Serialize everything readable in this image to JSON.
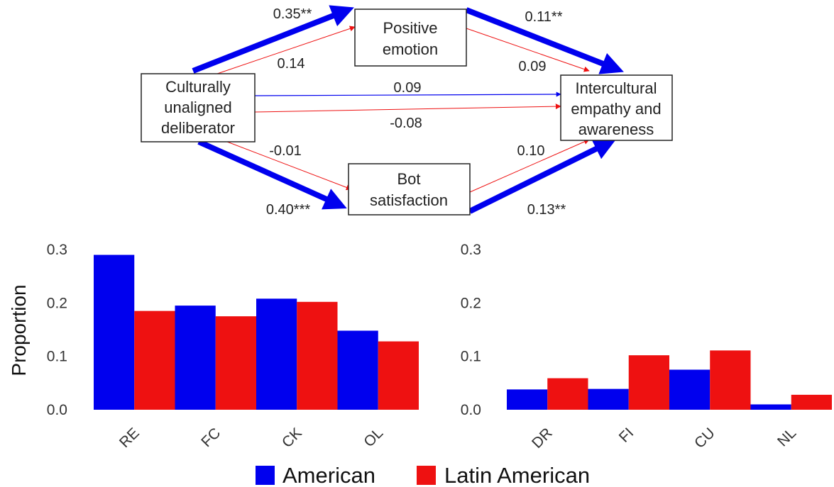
{
  "diagram": {
    "nodes": {
      "positive_emotion": [
        "Positive",
        "emotion"
      ],
      "culturally_unaligned": [
        "Culturally",
        "unaligned",
        "deliberator"
      ],
      "intercultural": [
        "Intercultural",
        "empathy and",
        "awareness"
      ],
      "bot_satisfaction": [
        "Bot",
        "satisfaction"
      ]
    },
    "paths": {
      "american": {
        "cu_to_pe": "0.35**",
        "pe_to_ic": "0.11**",
        "cu_to_ic": "0.09",
        "cu_to_bs": "0.40***",
        "bs_to_ic": "0.13**"
      },
      "latin_american": {
        "cu_to_pe": "0.14",
        "pe_to_ic": "0.09",
        "cu_to_ic": "-0.08",
        "cu_to_bs": "-0.01",
        "bs_to_ic": "0.10"
      }
    },
    "colors": {
      "american": "#0000ee",
      "latin_american": "#ee1111"
    }
  },
  "chart_data": [
    {
      "type": "bar",
      "categories": [
        "RE",
        "FC",
        "CK",
        "OL"
      ],
      "series": [
        {
          "name": "American",
          "values": [
            0.29,
            0.195,
            0.208,
            0.148
          ]
        },
        {
          "name": "Latin American",
          "values": [
            0.185,
            0.175,
            0.202,
            0.128
          ]
        }
      ],
      "ylabel": "Proportion",
      "ylim": [
        0,
        0.3
      ],
      "yticks": [
        "0.0",
        "0.1",
        "0.2",
        "0.3"
      ],
      "grid": false
    },
    {
      "type": "bar",
      "categories": [
        "DR",
        "FI",
        "CU",
        "NL"
      ],
      "series": [
        {
          "name": "American",
          "values": [
            0.038,
            0.039,
            0.075,
            0.01
          ]
        },
        {
          "name": "Latin American",
          "values": [
            0.059,
            0.102,
            0.111,
            0.028
          ]
        }
      ],
      "ylim": [
        0,
        0.3
      ],
      "yticks": [
        "0.0",
        "0.1",
        "0.2",
        "0.3"
      ],
      "grid": false
    }
  ],
  "legend": {
    "position": "bottom-center",
    "items": [
      {
        "label": "American",
        "color": "#0000ee"
      },
      {
        "label": "Latin American",
        "color": "#ee1111"
      }
    ]
  }
}
